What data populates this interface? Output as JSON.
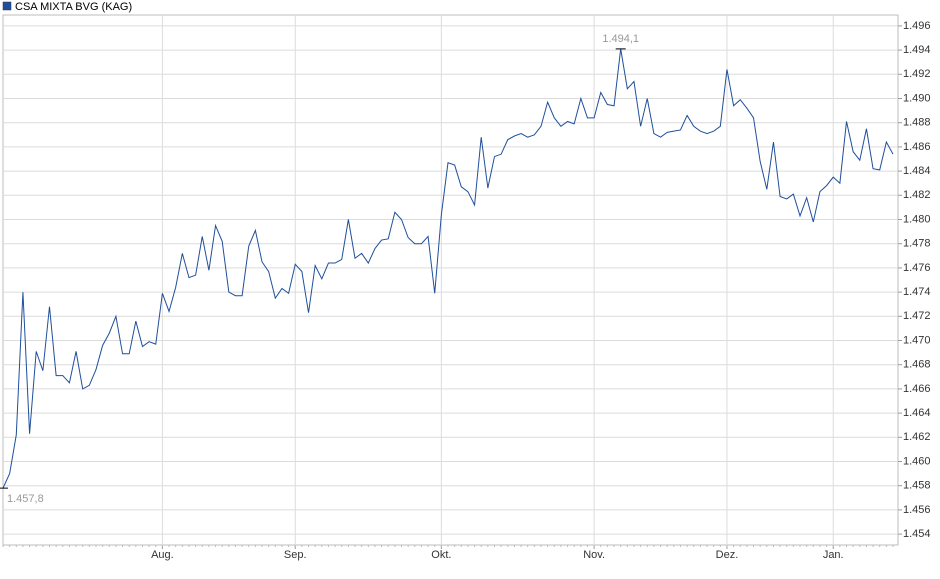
{
  "chart_data": {
    "type": "line",
    "categories": [
      null,
      null,
      null,
      null,
      null,
      null,
      null,
      null,
      null,
      null,
      null,
      null,
      null,
      null,
      null,
      null,
      null,
      null,
      null,
      null,
      null,
      null,
      null,
      null,
      "Aug.",
      null,
      null,
      null,
      null,
      null,
      null,
      null,
      null,
      null,
      null,
      null,
      null,
      null,
      null,
      null,
      null,
      null,
      null,
      null,
      "Sep.",
      null,
      null,
      null,
      null,
      null,
      null,
      null,
      null,
      null,
      null,
      null,
      null,
      null,
      null,
      null,
      null,
      null,
      null,
      null,
      null,
      null,
      "Okt.",
      null,
      null,
      null,
      null,
      null,
      null,
      null,
      null,
      null,
      null,
      null,
      null,
      null,
      null,
      null,
      null,
      null,
      null,
      null,
      null,
      null,
      null,
      "Nov.",
      null,
      null,
      null,
      null,
      null,
      null,
      null,
      null,
      null,
      null,
      null,
      null,
      null,
      null,
      null,
      null,
      null,
      null,
      null,
      "Dez.",
      null,
      null,
      null,
      null,
      null,
      null,
      null,
      null,
      null,
      null,
      null,
      null,
      null,
      null,
      null,
      "Jan.",
      null,
      null,
      null,
      null,
      null,
      null,
      null,
      null,
      null
    ],
    "series": [
      {
        "name": "CSA MIXTA BVG (KAG)",
        "color": "#1f4f9c",
        "values": [
          1457.8,
          1459.0,
          1462.2,
          1474.0,
          1462.3,
          1469.1,
          1467.5,
          1472.8,
          1467.1,
          1467.1,
          1466.5,
          1469.1,
          1466.0,
          1466.3,
          1467.6,
          1469.6,
          1470.6,
          1472.0,
          1468.9,
          1468.9,
          1471.6,
          1469.5,
          1469.9,
          1469.7,
          1473.9,
          1472.4,
          1474.4,
          1477.2,
          1475.2,
          1475.4,
          1478.6,
          1475.8,
          1479.5,
          1478.2,
          1474.0,
          1473.7,
          1473.7,
          1477.8,
          1479.1,
          1476.5,
          1475.7,
          1473.5,
          1474.3,
          1473.9,
          1476.3,
          1475.7,
          1472.3,
          1476.2,
          1475.1,
          1476.4,
          1476.4,
          1476.7,
          1480.0,
          1476.8,
          1477.2,
          1476.4,
          1477.6,
          1478.3,
          1478.4,
          1480.6,
          1480.0,
          1478.5,
          1478.0,
          1478.0,
          1478.6,
          1473.9,
          1480.4,
          1484.7,
          1484.5,
          1482.7,
          1482.3,
          1481.2,
          1486.8,
          1482.6,
          1485.2,
          1485.4,
          1486.6,
          1486.9,
          1487.1,
          1486.8,
          1487.0,
          1487.7,
          1489.7,
          1488.4,
          1487.7,
          1488.1,
          1487.9,
          1490.0,
          1488.4,
          1488.4,
          1490.5,
          1489.5,
          1489.4,
          1494.1,
          1490.8,
          1491.4,
          1487.7,
          1490.0,
          1487.1,
          1486.8,
          1487.2,
          1487.3,
          1487.4,
          1488.6,
          1487.7,
          1487.3,
          1487.1,
          1487.3,
          1487.7,
          1492.4,
          1489.4,
          1489.9,
          1489.2,
          1488.4,
          1484.8,
          1482.5,
          1486.4,
          1481.9,
          1481.7,
          1482.1,
          1480.3,
          1481.8,
          1479.8,
          1482.3,
          1482.8,
          1483.5,
          1483.0,
          1488.1,
          1485.6,
          1484.9,
          1487.5,
          1484.2,
          1484.1,
          1486.4,
          1485.4
        ],
        "value_labels": [
          "1.457,8",
          null,
          null,
          null,
          null,
          null,
          null,
          null,
          null,
          null,
          null,
          null,
          null,
          null,
          null,
          null,
          null,
          null,
          null,
          null,
          null,
          null,
          null,
          null,
          null,
          null,
          null,
          null,
          null,
          null,
          null,
          null,
          null,
          null,
          null,
          null,
          null,
          null,
          null,
          null,
          null,
          null,
          null,
          null,
          null,
          null,
          null,
          null,
          null,
          null,
          null,
          null,
          null,
          null,
          null,
          null,
          null,
          null,
          null,
          null,
          null,
          null,
          null,
          null,
          null,
          null,
          null,
          null,
          null,
          null,
          null,
          null,
          null,
          null,
          null,
          null,
          null,
          null,
          null,
          null,
          null,
          null,
          null,
          null,
          null,
          null,
          null,
          null,
          null,
          null,
          null,
          null,
          null,
          "1.494,1",
          null,
          null,
          null,
          null,
          null,
          null,
          null,
          null,
          null,
          null,
          null,
          null,
          null,
          null,
          null,
          null,
          null,
          null,
          null,
          null,
          null,
          null,
          null,
          null,
          null,
          null,
          null,
          null,
          null,
          null,
          null,
          null,
          null,
          null,
          null,
          null,
          null,
          null,
          null,
          null,
          null
        ]
      }
    ],
    "ylim": [
      1453.1,
      1496.9
    ],
    "yticks": [
      {
        "value": 1454,
        "label": "1.454"
      },
      {
        "value": 1456,
        "label": "1.456"
      },
      {
        "value": 1458,
        "label": "1.458"
      },
      {
        "value": 1460,
        "label": "1.460"
      },
      {
        "value": 1462,
        "label": "1.462"
      },
      {
        "value": 1464,
        "label": "1.464"
      },
      {
        "value": 1466,
        "label": "1.466"
      },
      {
        "value": 1468,
        "label": "1.468"
      },
      {
        "value": 1470,
        "label": "1.470"
      },
      {
        "value": 1472,
        "label": "1.472"
      },
      {
        "value": 1474,
        "label": "1.474"
      },
      {
        "value": 1476,
        "label": "1.476"
      },
      {
        "value": 1478,
        "label": "1.478"
      },
      {
        "value": 1480,
        "label": "1.480"
      },
      {
        "value": 1482,
        "label": "1.482"
      },
      {
        "value": 1484,
        "label": "1.484"
      },
      {
        "value": 1486,
        "label": "1.486"
      },
      {
        "value": 1488,
        "label": "1.488"
      },
      {
        "value": 1490,
        "label": "1.490"
      },
      {
        "value": 1492,
        "label": "1.492"
      },
      {
        "value": 1494,
        "label": "1.494"
      },
      {
        "value": 1496,
        "label": "1.496"
      }
    ],
    "grid": true
  }
}
